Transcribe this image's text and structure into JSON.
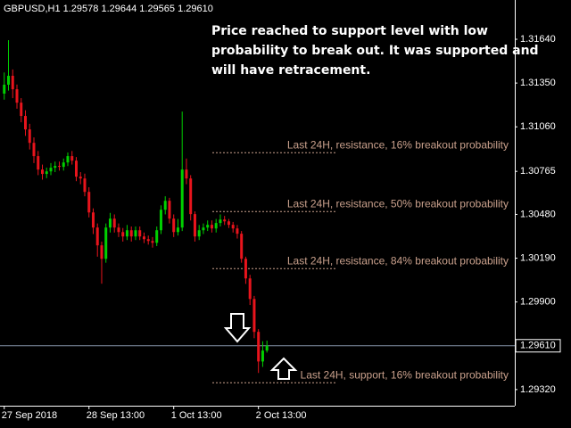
{
  "chart_data": {
    "type": "candlestick",
    "header": "GBPUSD,H1  1.29578 1.29644 1.29565 1.29610",
    "annotation": [
      "Price reached to support level with low",
      "probability to break out. It was supported and",
      "will have retracement."
    ],
    "up_color": "#00d000",
    "down_color": "#e8141c",
    "candles": {
      "open": [
        1.3128,
        1.31339,
        1.31398,
        1.31309,
        1.3122,
        1.31132,
        1.31043,
        1.30954,
        1.30866,
        1.30777,
        1.30748,
        1.30765,
        1.30789,
        1.30801,
        1.30795,
        1.30824,
        1.30866,
        1.30836,
        1.3073,
        1.30718,
        1.30629,
        1.30493,
        1.30393,
        1.30275,
        1.30186,
        1.30393,
        1.30452,
        1.30393,
        1.30363,
        1.30334,
        1.30375,
        1.30334,
        1.30375,
        1.30334,
        1.30316,
        1.30304,
        1.30292,
        1.30375,
        1.30511,
        1.3057,
        1.30452,
        1.30363,
        1.30393,
        1.30777,
        1.30718,
        1.30482,
        1.30334,
        1.30375,
        1.30393,
        1.30411,
        1.30387,
        1.30423,
        1.30446,
        1.30434,
        1.30411,
        1.30387,
        1.30352,
        1.30186,
        1.30056,
        1.2992,
        1.29702,
        1.29506,
        1.29578
      ],
      "high": [
        1.3142,
        1.31634,
        1.3144,
        1.3134,
        1.3125,
        1.3117,
        1.3108,
        1.3099,
        1.309,
        1.3081,
        1.3079,
        1.3082,
        1.3083,
        1.3083,
        1.3085,
        1.3089,
        1.309,
        1.3086,
        1.3076,
        1.3075,
        1.3066,
        1.3052,
        1.3042,
        1.303,
        1.3042,
        1.3049,
        1.3048,
        1.3042,
        1.3039,
        1.3041,
        1.304,
        1.304,
        1.304,
        1.3036,
        1.3034,
        1.3033,
        1.304,
        1.3054,
        1.306,
        1.3059,
        1.3048,
        1.3045,
        1.31161,
        1.3085,
        1.3074,
        1.305,
        1.3041,
        1.3042,
        1.3044,
        1.3044,
        1.3045,
        1.3048,
        1.3047,
        1.3045,
        1.3043,
        1.3041,
        1.3037,
        1.302,
        1.3008,
        1.2994,
        1.2972,
        1.2964,
        1.29644
      ],
      "low": [
        1.3124,
        1.313,
        1.3125,
        1.3118,
        1.3109,
        1.31,
        1.3091,
        1.3082,
        1.3074,
        1.3071,
        1.3072,
        1.3074,
        1.3076,
        1.3077,
        1.3077,
        1.308,
        1.3081,
        1.307,
        1.3068,
        1.306,
        1.3046,
        1.3035,
        1.302,
        1.30021,
        1.3016,
        1.3036,
        1.3036,
        1.3033,
        1.303,
        1.3031,
        1.303,
        1.3031,
        1.3031,
        1.3029,
        1.3028,
        1.3026,
        1.3027,
        1.3035,
        1.3048,
        1.3042,
        1.3033,
        1.3034,
        1.3037,
        1.3068,
        1.3044,
        1.303,
        1.3031,
        1.3035,
        1.3037,
        1.3036,
        1.3036,
        1.304,
        1.3041,
        1.3039,
        1.3036,
        1.3032,
        1.3016,
        1.3002,
        1.2988,
        1.2966,
        1.2943,
        1.2947,
        1.29565
      ],
      "close": [
        1.31339,
        1.31398,
        1.31309,
        1.3122,
        1.31132,
        1.31043,
        1.30954,
        1.30866,
        1.30777,
        1.30748,
        1.30765,
        1.30789,
        1.30801,
        1.30795,
        1.30824,
        1.30866,
        1.30836,
        1.3073,
        1.30718,
        1.30629,
        1.30493,
        1.30393,
        1.30275,
        1.30186,
        1.30393,
        1.30452,
        1.30393,
        1.30363,
        1.30334,
        1.30375,
        1.30334,
        1.30375,
        1.30334,
        1.30316,
        1.30304,
        1.30292,
        1.30375,
        1.30511,
        1.3057,
        1.30452,
        1.30363,
        1.30393,
        1.30777,
        1.30718,
        1.30482,
        1.30334,
        1.30375,
        1.30393,
        1.30411,
        1.30387,
        1.30423,
        1.30446,
        1.30434,
        1.30411,
        1.30387,
        1.30352,
        1.30186,
        1.30056,
        1.2992,
        1.29702,
        1.29506,
        1.29578,
        1.2961
      ]
    },
    "xlim": [
      -1,
      120.5
    ],
    "xticks": [
      {
        "value": 0,
        "label": "27 Sep 2018"
      },
      {
        "value": 20,
        "label": "28 Sep 13:00"
      },
      {
        "value": 40,
        "label": "1 Oct 13:00"
      },
      {
        "value": 60,
        "label": "2 Oct 13:00"
      }
    ],
    "ylim": [
      1.29213,
      1.319
    ],
    "yticks": [
      {
        "value": 1.3164,
        "label": "1.31640"
      },
      {
        "value": 1.3135,
        "label": "1.31350"
      },
      {
        "value": 1.3106,
        "label": "1.31060"
      },
      1.30765,
      {
        "value": 1.3048,
        "label": "1.30480"
      },
      {
        "value": 1.3019,
        "label": "1.30190"
      },
      {
        "value": 1.299,
        "label": "1.29900"
      },
      {
        "value": 1.2932,
        "label": "1.29320"
      }
    ],
    "current_price": {
      "value": 1.2961,
      "label": "1.29610"
    },
    "levels": [
      {
        "label": "Last 24H, resistance, 16% breakout probability",
        "value": 1.30889
      },
      {
        "label": "Last 24H, resistance, 50% breakout probability",
        "value": 1.30499
      },
      {
        "label": "Last 24H, resistance, 84% breakout probability",
        "value": 1.30121
      },
      {
        "label": "Last 24H, support, 16% breakout probability",
        "value": 1.29365
      }
    ]
  }
}
